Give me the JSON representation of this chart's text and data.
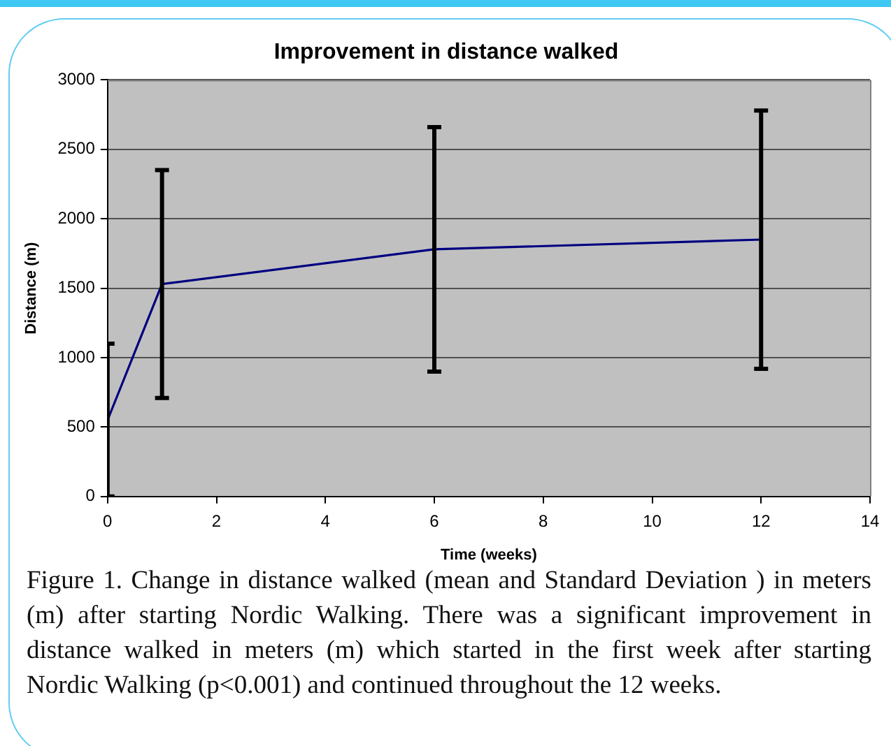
{
  "chart_data": {
    "type": "line",
    "title": "Improvement in distance walked",
    "xlabel": "Time (weeks)",
    "ylabel": "Distance (m)",
    "x": [
      0,
      1,
      6,
      12
    ],
    "series": [
      {
        "color": "#000080",
        "values": [
          550,
          1530,
          1780,
          1850
        ],
        "errors": [
          550,
          820,
          880,
          930
        ]
      }
    ],
    "xlim": [
      0,
      14
    ],
    "xticks": [
      0,
      2,
      4,
      6,
      8,
      10,
      12,
      14
    ],
    "ylim": [
      0,
      3000
    ],
    "yticks": [
      0,
      500,
      1000,
      1500,
      2000,
      2500,
      3000
    ],
    "grid": "y",
    "legend": false,
    "marker": "none",
    "annotations": [
      "Figure 1. Change in distance walked (mean and Standard Deviation ) in meters (m) after starting Nordic Walking. There was a significant improvement in distance walked in meters (m) which started in the first week after starting Nordic Walking (p<0.001) and continued throughout the 12 weeks."
    ]
  }
}
